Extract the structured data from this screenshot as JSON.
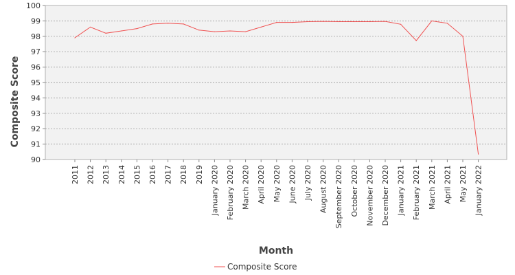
{
  "chart_data": {
    "type": "line",
    "xlabel": "Month",
    "ylabel": "Composite Score",
    "ylim": [
      90,
      100
    ],
    "y_ticks": [
      90,
      91,
      92,
      93,
      94,
      95,
      96,
      97,
      98,
      99,
      100
    ],
    "grid": "horizontal-dashed",
    "legend_placement": "bottom-center",
    "categories": [
      "2011",
      "2012",
      "2013",
      "2014",
      "2015",
      "2016",
      "2017",
      "2018",
      "2019",
      "January 2020",
      "February 2020",
      "March 2020",
      "April 2020",
      "May 2020",
      "June 2020",
      "July 2020",
      "August 2020",
      "September 2020",
      "October 2020",
      "November 2020",
      "December 2020",
      "January 2021",
      "February 2021",
      "March 2021",
      "April 2021",
      "May 2021",
      "January 2022"
    ],
    "series": [
      {
        "name": "Composite Score",
        "color": "#f05050",
        "values": [
          97.9,
          98.6,
          98.2,
          98.35,
          98.5,
          98.8,
          98.85,
          98.8,
          98.4,
          98.3,
          98.35,
          98.3,
          98.6,
          98.9,
          98.9,
          98.95,
          98.97,
          98.95,
          98.95,
          98.95,
          98.97,
          98.78,
          97.72,
          99.0,
          98.85,
          98.0,
          90.35
        ]
      }
    ]
  }
}
